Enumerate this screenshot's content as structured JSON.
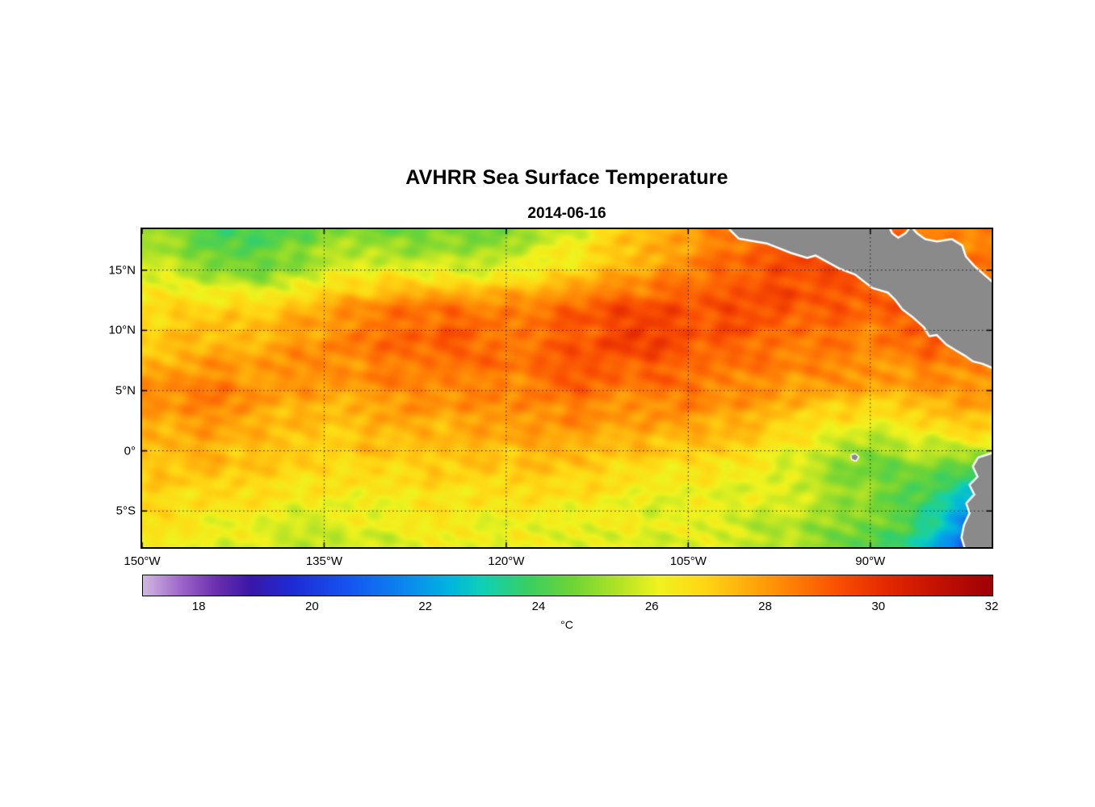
{
  "title": "AVHRR Sea Surface Temperature",
  "subtitle": "2014-06-16",
  "chart_data": {
    "type": "heatmap",
    "title": "AVHRR Sea Surface Temperature",
    "subtitle": "2014-06-16",
    "lon_range": [
      -150,
      -80
    ],
    "lat_range": [
      -8,
      18.4
    ],
    "x_ticks": [
      {
        "lon": -150,
        "label": "150°W"
      },
      {
        "lon": -135,
        "label": "135°W"
      },
      {
        "lon": -120,
        "label": "120°W"
      },
      {
        "lon": -105,
        "label": "105°W"
      },
      {
        "lon": -90,
        "label": "90°W"
      }
    ],
    "y_ticks": [
      {
        "lat": 15,
        "label": "15°N"
      },
      {
        "lat": 10,
        "label": "10°N"
      },
      {
        "lat": 5,
        "label": "5°N"
      },
      {
        "lat": 0,
        "label": "0°"
      },
      {
        "lat": -5,
        "label": "5°S"
      }
    ],
    "grid_lines": {
      "lons": [
        -135,
        -120,
        -105,
        -90
      ],
      "lats": [
        15,
        10,
        5,
        0,
        -5
      ],
      "style": "dotted"
    },
    "grid_lons": [
      -150,
      -145,
      -140,
      -135,
      -130,
      -125,
      -120,
      -115,
      -110,
      -105,
      -100,
      -95,
      -90,
      -85,
      -80
    ],
    "grid_lats": [
      18.4,
      15.1,
      11.8,
      8.5,
      5.2,
      1.9,
      -1.4,
      -4.7,
      -8.0
    ],
    "sst_degC": [
      [
        25.2,
        24.2,
        24.0,
        24.8,
        24.3,
        24.5,
        24.8,
        25.8,
        27.0,
        27.8,
        28.6,
        29.0,
        29.0,
        28.5,
        28.2
      ],
      [
        25.8,
        25.2,
        24.6,
        25.6,
        26.0,
        25.8,
        26.0,
        26.6,
        27.4,
        28.4,
        29.2,
        29.4,
        29.0,
        28.8,
        28.6
      ],
      [
        26.6,
        27.0,
        27.2,
        27.8,
        28.4,
        28.8,
        28.6,
        29.0,
        29.4,
        29.2,
        29.6,
        29.2,
        28.8,
        29.0,
        28.6
      ],
      [
        27.2,
        27.6,
        27.8,
        28.2,
        28.6,
        29.2,
        28.8,
        29.0,
        29.5,
        29.2,
        28.9,
        28.6,
        28.2,
        28.8,
        28.4
      ],
      [
        28.4,
        28.6,
        28.0,
        27.8,
        28.3,
        28.5,
        28.2,
        28.8,
        28.5,
        28.8,
        28.2,
        27.9,
        27.7,
        28.0,
        28.3
      ],
      [
        27.6,
        27.8,
        27.4,
        27.2,
        27.7,
        27.5,
        27.8,
        28.1,
        27.9,
        27.7,
        27.3,
        26.6,
        26.0,
        26.5,
        27.2
      ],
      [
        27.3,
        27.4,
        27.0,
        26.8,
        27.0,
        27.1,
        27.0,
        27.2,
        26.9,
        26.6,
        26.2,
        25.4,
        24.6,
        24.9,
        23.8
      ],
      [
        26.7,
        26.5,
        26.3,
        26.1,
        26.3,
        26.4,
        26.2,
        26.4,
        26.2,
        26.0,
        25.8,
        25.5,
        25.0,
        23.8,
        20.5
      ],
      [
        26.2,
        26.0,
        25.8,
        25.6,
        25.8,
        26.0,
        26.0,
        26.2,
        26.0,
        25.8,
        25.5,
        25.1,
        24.3,
        22.8,
        18.5
      ]
    ],
    "colorbar": {
      "min": 17,
      "max": 32,
      "ticks": [
        {
          "value": 18,
          "label": "18"
        },
        {
          "value": 20,
          "label": "20"
        },
        {
          "value": 22,
          "label": "22"
        },
        {
          "value": 24,
          "label": "24"
        },
        {
          "value": 26,
          "label": "26"
        },
        {
          "value": 28,
          "label": "28"
        },
        {
          "value": 30,
          "label": "30"
        },
        {
          "value": 32,
          "label": "32"
        }
      ],
      "unit": "°C",
      "stops": [
        [
          17.0,
          "#d2b8e0"
        ],
        [
          17.7,
          "#9b63c8"
        ],
        [
          18.3,
          "#6a2fae"
        ],
        [
          18.9,
          "#3a17a8"
        ],
        [
          19.6,
          "#1f2ad4"
        ],
        [
          20.6,
          "#1553f0"
        ],
        [
          21.6,
          "#0c86f0"
        ],
        [
          22.4,
          "#00b4e0"
        ],
        [
          23.0,
          "#0fd0b5"
        ],
        [
          23.8,
          "#39cf62"
        ],
        [
          24.6,
          "#6fd435"
        ],
        [
          25.4,
          "#b2e326"
        ],
        [
          26.1,
          "#eff31e"
        ],
        [
          26.9,
          "#ffd714"
        ],
        [
          27.7,
          "#ffab0b"
        ],
        [
          28.5,
          "#ff7d05"
        ],
        [
          29.3,
          "#f94e02"
        ],
        [
          30.1,
          "#e52900"
        ],
        [
          31.0,
          "#c41202"
        ],
        [
          32.0,
          "#9e0006"
        ]
      ]
    },
    "land": {
      "fill": "#8a8a8a",
      "outline": "#ffffff",
      "polygons": [
        [
          [
            -101.5,
            18.4
          ],
          [
            -100.8,
            17.7
          ],
          [
            -98.5,
            17.3
          ],
          [
            -96.5,
            16.5
          ],
          [
            -95.2,
            16.1
          ],
          [
            -94.5,
            16.3
          ],
          [
            -92.5,
            15.2
          ],
          [
            -91.2,
            14.7
          ],
          [
            -89.8,
            13.6
          ],
          [
            -88.5,
            13.2
          ],
          [
            -87.9,
            12.6
          ],
          [
            -87.3,
            11.8
          ],
          [
            -86.5,
            11.2
          ],
          [
            -85.5,
            10.3
          ],
          [
            -85.1,
            9.6
          ],
          [
            -84.5,
            9.7
          ],
          [
            -83.7,
            8.9
          ],
          [
            -82.9,
            8.4
          ],
          [
            -82.2,
            8.0
          ],
          [
            -81.5,
            7.5
          ],
          [
            -80.7,
            7.3
          ],
          [
            -79.8,
            6.9
          ],
          [
            -79.8,
            13.8
          ],
          [
            -81.5,
            15.3
          ],
          [
            -82.2,
            16.1
          ],
          [
            -82.5,
            17.0
          ],
          [
            -83.3,
            17.5
          ],
          [
            -84.5,
            17.3
          ],
          [
            -85.5,
            17.5
          ],
          [
            -86.2,
            18.0
          ],
          [
            -86.65,
            18.5
          ],
          [
            -87.05,
            18.0
          ],
          [
            -87.7,
            17.6
          ],
          [
            -88.25,
            18.0
          ],
          [
            -88.5,
            18.5
          ]
        ],
        [
          [
            -79.8,
            -0.23
          ],
          [
            -81.06,
            -0.63
          ],
          [
            -81.46,
            -1.3
          ],
          [
            -81.06,
            -2.17
          ],
          [
            -81.73,
            -2.84
          ],
          [
            -81.33,
            -3.64
          ],
          [
            -82.0,
            -4.38
          ],
          [
            -81.73,
            -5.18
          ],
          [
            -82.2,
            -6.19
          ],
          [
            -82.4,
            -7.19
          ],
          [
            -82.13,
            -8.1
          ],
          [
            -79.8,
            -8.1
          ]
        ],
        [
          [
            -91.55,
            -0.38
          ],
          [
            -91.25,
            -0.3
          ],
          [
            -91.0,
            -0.5
          ],
          [
            -91.2,
            -0.8
          ],
          [
            -91.5,
            -0.68
          ]
        ]
      ]
    }
  }
}
